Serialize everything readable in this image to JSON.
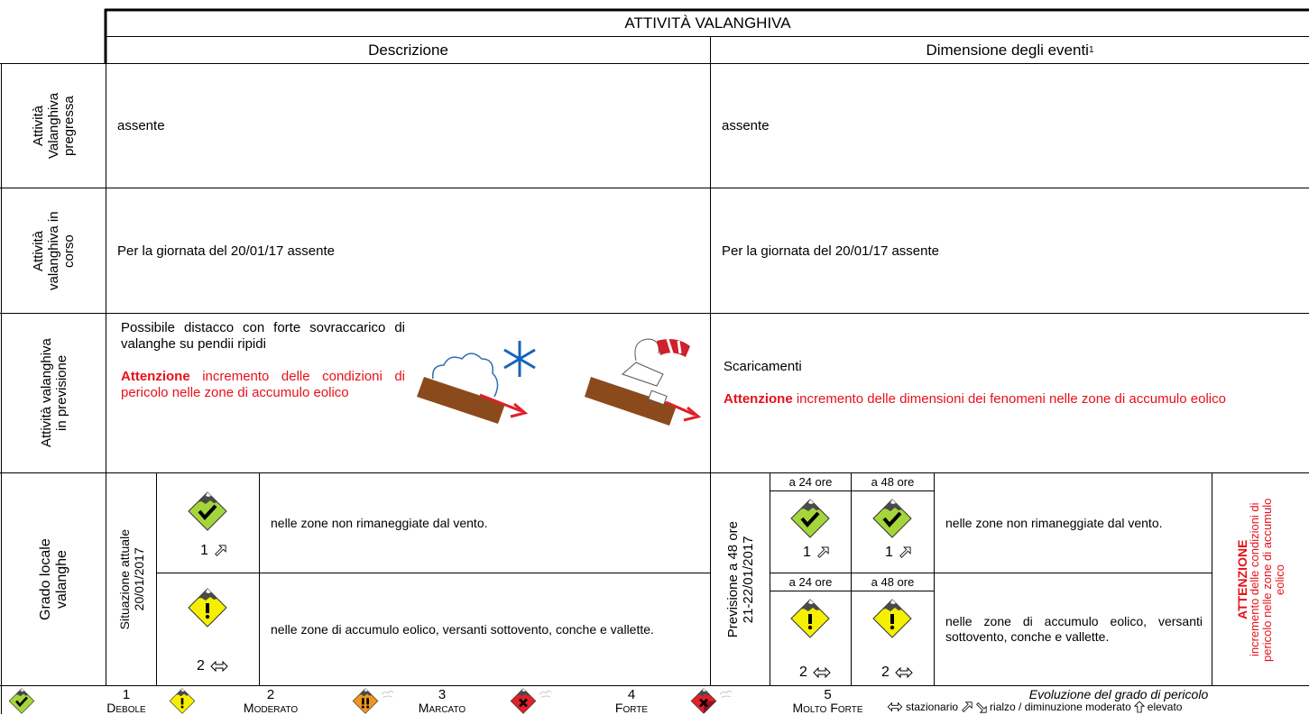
{
  "header": {
    "title": "ATTIVITÀ VALANGHIVA",
    "description_heading": "Descrizione",
    "size_heading": "Dimensione degli eventi",
    "size_heading_note": "1"
  },
  "rows": [
    {
      "label": "Attività Valanghiva pregressa",
      "description": "assente",
      "size": "assente"
    },
    {
      "label": "Attività valanghiva in corso",
      "description": "Per la giornata del 20/01/17 assente",
      "size": "Per la giornata del 20/01/17 assente"
    },
    {
      "label": "Attività valanghiva in previsione",
      "description": "Possibile distacco con forte sovraccarico di valanghe su pendii ripidi",
      "description_warning": {
        "emphasis": "Attenzione",
        "text": "incremento delle condizioni di pericolo nelle zone di accumulo eolico"
      },
      "size": "Scaricamenti",
      "size_warning": {
        "emphasis": "Attenzione",
        "text": "incremento delle dimensioni dei fenomeni nelle zone di accumulo eolico"
      }
    }
  ],
  "danger_level": {
    "label": "Grado locale valanghe",
    "current": {
      "label": "Situazione attuale",
      "date": "20/01/2017",
      "entries": [
        {
          "level": 1,
          "zones": "nelle zone non rimaneggiate dal vento."
        },
        {
          "level": 2,
          "zones": "nelle zone di accumulo eolico, versanti sottovento, conche e vallette."
        }
      ]
    },
    "forecast": {
      "label": "Previsione a 48 ore",
      "dates": "21-22/01/2017",
      "entries": [
        {
          "label_24": "a 24 ore",
          "level_24": 1,
          "label_48": "a 48 ore",
          "level_48": 1,
          "zones": "nelle zone non rimaneggiate dal vento."
        },
        {
          "label_24": "a 24 ore",
          "level_24": 2,
          "label_48": "a 48 ore",
          "level_48": 2,
          "zones": "nelle zone di accumulo eolico, versanti sottovento, conche e vallette."
        }
      ],
      "warning": {
        "emphasis": "ATTENZIONE",
        "text": "incremento delle condizioni di pericolo nelle zone di accumulo eolico"
      }
    }
  },
  "legend": {
    "levels": [
      {
        "number": 1,
        "name": "Debole"
      },
      {
        "number": 2,
        "name": "Moderato"
      },
      {
        "number": 3,
        "name": "Marcato"
      },
      {
        "number": 4,
        "name": "Forte"
      },
      {
        "number": 5,
        "name": "Molto Forte"
      }
    ],
    "evolution": {
      "title": "Evoluzione del grado di pericolo",
      "steady": "stazionario",
      "moderate": "rialzo / diminuzione moderato",
      "high": "elevato"
    }
  }
}
